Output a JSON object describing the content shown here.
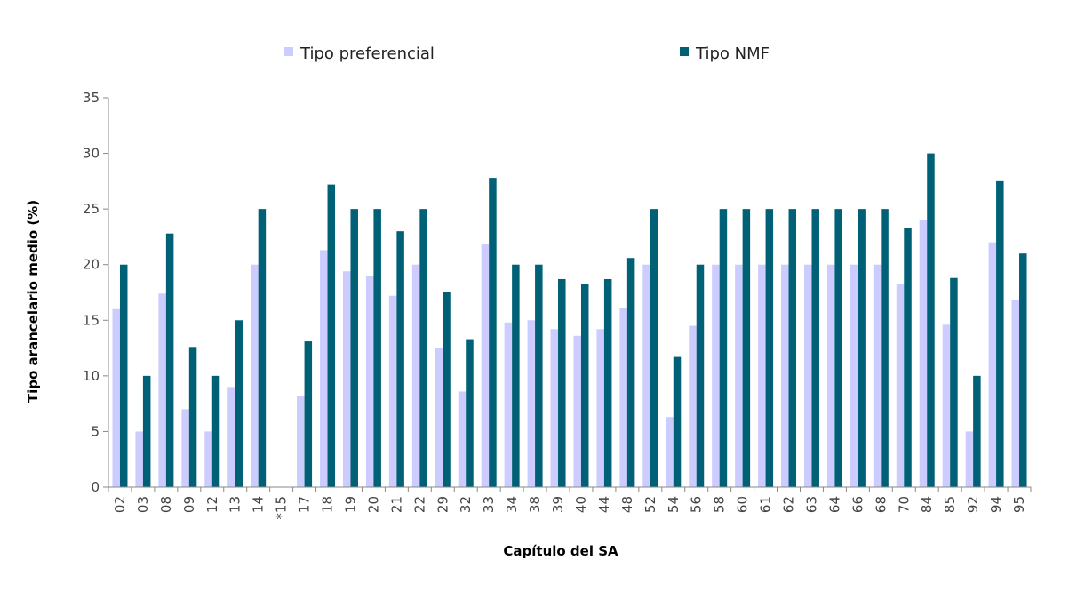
{
  "chart_data": {
    "type": "bar",
    "title": "",
    "xlabel": "Capítulo del SA",
    "ylabel": "Tipo arancelario medio (%)",
    "ylim": [
      0,
      35
    ],
    "yticks": [
      0,
      5,
      10,
      15,
      20,
      25,
      30,
      35
    ],
    "grid": false,
    "legend_position": "top",
    "categories": [
      "02",
      "03",
      "08",
      "09",
      "12",
      "13",
      "14",
      "*15",
      "17",
      "18",
      "19",
      "20",
      "21",
      "22",
      "29",
      "32",
      "33",
      "34",
      "38",
      "39",
      "40",
      "44",
      "48",
      "52",
      "54",
      "56",
      "58",
      "60",
      "61",
      "62",
      "63",
      "64",
      "66",
      "68",
      "70",
      "84",
      "85",
      "92",
      "94",
      "95"
    ],
    "series": [
      {
        "name": "Tipo preferencial",
        "color": "#ccccff",
        "values": [
          16,
          5,
          17.4,
          7,
          5,
          9,
          20,
          0,
          8.2,
          21.3,
          19.4,
          19,
          17.2,
          20,
          12.5,
          8.6,
          21.9,
          14.8,
          15,
          14.2,
          13.6,
          14.2,
          16.1,
          20,
          6.3,
          14.5,
          20,
          20,
          20,
          20,
          20,
          20,
          20,
          20,
          18.3,
          24,
          14.6,
          5,
          22,
          16.8
        ]
      },
      {
        "name": "Tipo NMF",
        "color": "#006076",
        "values": [
          20,
          10,
          22.8,
          12.6,
          10,
          15,
          25,
          0,
          13.1,
          27.2,
          25,
          25,
          23,
          25,
          17.5,
          13.3,
          27.8,
          20,
          20,
          18.7,
          18.3,
          18.7,
          20.6,
          25,
          11.7,
          20,
          25,
          25,
          25,
          25,
          25,
          25,
          25,
          25,
          23.3,
          30,
          18.8,
          10,
          27.5,
          21
        ]
      }
    ]
  }
}
